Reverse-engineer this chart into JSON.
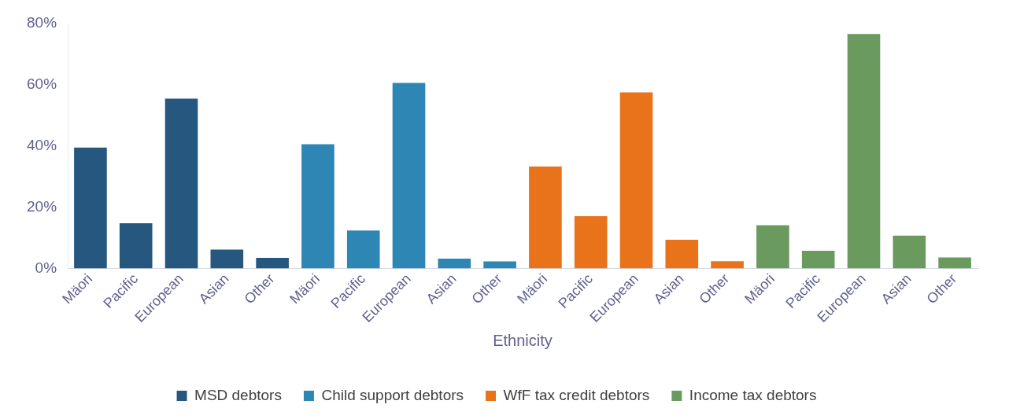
{
  "chart_data": {
    "type": "bar",
    "xlabel": "Ethnicity",
    "categories": [
      "Mäori",
      "Pacific",
      "European",
      "Asian",
      "Other",
      "Mäori",
      "Pacific",
      "European",
      "Asian",
      "Other",
      "Mäori",
      "Pacific",
      "European",
      "Asian",
      "Other",
      "Mäori",
      "Pacific",
      "European",
      "Asian",
      "Other"
    ],
    "series": [
      {
        "name": "MSD debtors",
        "color": "#26577e",
        "values": [
          39.5,
          14.8,
          55.5,
          6.2,
          3.5,
          null,
          null,
          null,
          null,
          null,
          null,
          null,
          null,
          null,
          null,
          null,
          null,
          null,
          null,
          null
        ]
      },
      {
        "name": "Child support debtors",
        "color": "#2d86b3",
        "values": [
          null,
          null,
          null,
          null,
          null,
          40.6,
          12.4,
          60.6,
          3.2,
          2.3,
          null,
          null,
          null,
          null,
          null,
          null,
          null,
          null,
          null,
          null
        ]
      },
      {
        "name": "WfF tax credit debtors",
        "color": "#e8731b",
        "values": [
          null,
          null,
          null,
          null,
          null,
          null,
          null,
          null,
          null,
          null,
          33.3,
          17.1,
          57.5,
          9.4,
          2.4,
          null,
          null,
          null,
          null,
          null
        ]
      },
      {
        "name": "Income tax debtors",
        "color": "#6a9a5d",
        "values": [
          null,
          null,
          null,
          null,
          null,
          null,
          null,
          null,
          null,
          null,
          null,
          null,
          null,
          null,
          null,
          14.1,
          5.8,
          76.6,
          10.7,
          3.6
        ]
      }
    ],
    "ylim": [
      0,
      80
    ],
    "yticks": [
      {
        "value": 0,
        "label": "0%"
      },
      {
        "value": 20,
        "label": "20%"
      },
      {
        "value": 40,
        "label": "40%"
      },
      {
        "value": 60,
        "label": "60%"
      },
      {
        "value": 80,
        "label": "80%"
      }
    ],
    "grid": false,
    "legend": "bottom"
  }
}
